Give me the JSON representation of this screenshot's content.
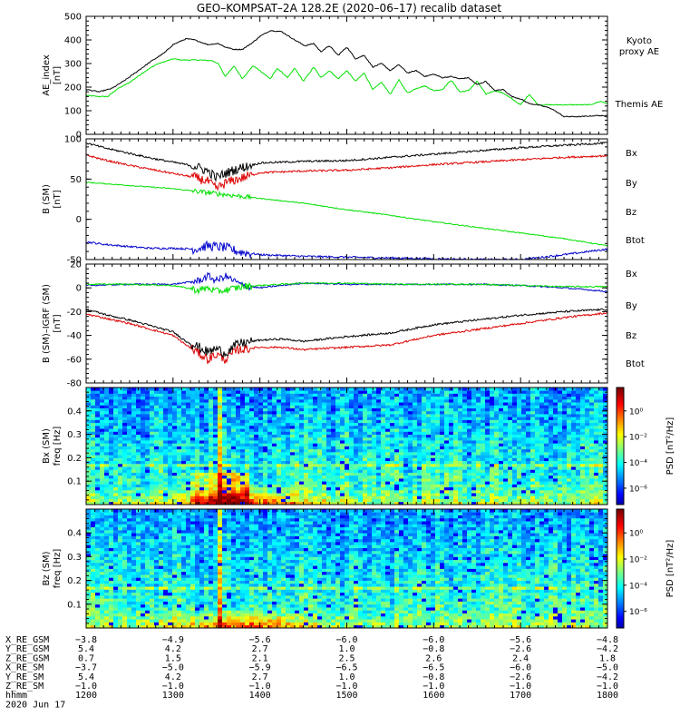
{
  "title": "GEO–KOMPSAT–2A 128.2E (2020–06–17) recalib dataset",
  "chart_data": [
    {
      "type": "line",
      "ylabel": "AE_index",
      "yunit": "[nT]",
      "ylim": [
        0,
        500
      ],
      "yticks": [
        "0",
        "100",
        "200",
        "300",
        "400",
        "500"
      ],
      "xlim": [
        1200,
        1800
      ],
      "series": [
        {
          "name": "Kyoto\nproxy AE",
          "color": "#00e000",
          "x": [
            1200,
            1215,
            1225,
            1235,
            1250,
            1265,
            1280,
            1300,
            1310,
            1330,
            1345,
            1352,
            1360,
            1370,
            1380,
            1392,
            1400,
            1412,
            1420,
            1432,
            1440,
            1450,
            1462,
            1470,
            1480,
            1490,
            1500,
            1510,
            1520,
            1530,
            1540,
            1550,
            1560,
            1570,
            1580,
            1590,
            1600,
            1610,
            1620,
            1630,
            1640,
            1650,
            1660,
            1670,
            1680,
            1690,
            1700,
            1710,
            1720,
            1740,
            1760,
            1780,
            1792,
            1800
          ],
          "y": [
            165,
            160,
            160,
            190,
            220,
            260,
            295,
            320,
            315,
            315,
            312,
            300,
            245,
            290,
            235,
            290,
            270,
            235,
            280,
            240,
            280,
            225,
            285,
            240,
            270,
            235,
            270,
            225,
            260,
            190,
            220,
            170,
            230,
            175,
            195,
            205,
            185,
            190,
            230,
            180,
            185,
            225,
            170,
            185,
            175,
            150,
            125,
            170,
            125,
            125,
            125,
            125,
            140,
            130
          ]
        },
        {
          "name": "Themis AE",
          "color": "#000000",
          "x": [
            1200,
            1215,
            1230,
            1245,
            1260,
            1275,
            1290,
            1300,
            1315,
            1325,
            1340,
            1352,
            1360,
            1370,
            1380,
            1392,
            1400,
            1412,
            1425,
            1440,
            1452,
            1462,
            1470,
            1480,
            1490,
            1500,
            1510,
            1520,
            1530,
            1540,
            1550,
            1560,
            1570,
            1580,
            1590,
            1600,
            1610,
            1620,
            1630,
            1640,
            1650,
            1660,
            1670,
            1680,
            1690,
            1700,
            1710,
            1720,
            1735,
            1750,
            1770,
            1790,
            1800
          ],
          "y": [
            190,
            180,
            195,
            230,
            270,
            310,
            345,
            380,
            405,
            400,
            380,
            385,
            370,
            360,
            360,
            390,
            415,
            440,
            435,
            400,
            375,
            385,
            350,
            375,
            335,
            370,
            320,
            335,
            285,
            300,
            270,
            295,
            260,
            270,
            245,
            255,
            240,
            245,
            235,
            240,
            210,
            225,
            185,
            190,
            160,
            150,
            130,
            125,
            110,
            75,
            75,
            80,
            75
          ]
        }
      ],
      "legend": "right"
    },
    {
      "type": "line",
      "ylabel": "B (SM)",
      "yunit": "[nT]",
      "ylim": [
        -50,
        100
      ],
      "yticks": [
        "-50",
        "0",
        "50",
        "100"
      ],
      "xlim": [
        1200,
        1800
      ],
      "series": [
        {
          "name": "Bx",
          "color": "#0000cc",
          "x": [
            1200,
            1220,
            1250,
            1275,
            1300,
            1325,
            1340,
            1350,
            1360,
            1375,
            1400,
            1450,
            1500,
            1550,
            1600,
            1650,
            1700,
            1750,
            1800
          ],
          "y": [
            -28,
            -31,
            -34,
            -36,
            -36,
            -37,
            -33,
            -34,
            -35,
            -40,
            -44,
            -46,
            -47,
            -48,
            -49,
            -50,
            -50,
            -44,
            -37
          ]
        },
        {
          "name": "By",
          "color": "#00e000",
          "x": [
            1200,
            1250,
            1300,
            1350,
            1400,
            1450,
            1500,
            1550,
            1600,
            1650,
            1700,
            1750,
            1800
          ],
          "y": [
            46,
            42,
            38,
            32,
            26,
            20,
            12,
            5,
            -3,
            -10,
            -17,
            -24,
            -33
          ]
        },
        {
          "name": "Bz",
          "color": "#dd0000",
          "x": [
            1200,
            1220,
            1250,
            1275,
            1300,
            1325,
            1340,
            1350,
            1360,
            1375,
            1400,
            1450,
            1500,
            1550,
            1600,
            1650,
            1700,
            1750,
            1800
          ],
          "y": [
            80,
            74,
            67,
            62,
            57,
            52,
            47,
            38,
            45,
            50,
            58,
            60,
            61,
            64,
            68,
            71,
            74,
            77,
            79
          ]
        },
        {
          "name": "Btot",
          "color": "#000000",
          "x": [
            1200,
            1220,
            1250,
            1275,
            1300,
            1325,
            1340,
            1350,
            1360,
            1375,
            1400,
            1450,
            1500,
            1550,
            1600,
            1650,
            1700,
            1750,
            1800
          ],
          "y": [
            95,
            89,
            82,
            76,
            71,
            66,
            60,
            52,
            57,
            63,
            70,
            72,
            73,
            77,
            81,
            85,
            89,
            92,
            95
          ]
        }
      ],
      "legend": "right"
    },
    {
      "type": "line",
      "ylabel": "B (SM)–IGRF (SM)",
      "yunit": "[nT]",
      "ylim": [
        -80,
        20
      ],
      "yticks": [
        "-80",
        "-60",
        "-40",
        "-20",
        "0",
        "20"
      ],
      "xlim": [
        1200,
        1800
      ],
      "series": [
        {
          "name": "Bx",
          "color": "#0000cc",
          "x": [
            1200,
            1250,
            1300,
            1330,
            1340,
            1350,
            1360,
            1380,
            1400,
            1450,
            1500,
            1550,
            1600,
            1650,
            1700,
            1750,
            1800
          ],
          "y": [
            2,
            3,
            3,
            6,
            10,
            6,
            10,
            2,
            0,
            4,
            3,
            3,
            3,
            3,
            2,
            0,
            -3
          ]
        },
        {
          "name": "By",
          "color": "#00e000",
          "x": [
            1200,
            1250,
            1300,
            1330,
            1340,
            1350,
            1360,
            1380,
            1400,
            1450,
            1500,
            1550,
            1600,
            1650,
            1700,
            1750,
            1800
          ],
          "y": [
            3,
            3,
            2,
            -2,
            0,
            -3,
            -2,
            1,
            2,
            4,
            4,
            3,
            3,
            3,
            2,
            1,
            1
          ]
        },
        {
          "name": "Bz",
          "color": "#dd0000",
          "x": [
            1200,
            1225,
            1250,
            1275,
            1300,
            1315,
            1330,
            1340,
            1350,
            1360,
            1375,
            1400,
            1425,
            1450,
            1475,
            1500,
            1550,
            1600,
            1650,
            1700,
            1750,
            1800
          ],
          "y": [
            -22,
            -26,
            -30,
            -35,
            -40,
            -48,
            -55,
            -60,
            -56,
            -60,
            -52,
            -50,
            -50,
            -52,
            -51,
            -50,
            -48,
            -40,
            -35,
            -30,
            -25,
            -21
          ]
        },
        {
          "name": "Btot",
          "color": "#000000",
          "x": [
            1200,
            1225,
            1250,
            1275,
            1300,
            1315,
            1330,
            1340,
            1350,
            1360,
            1375,
            1400,
            1425,
            1450,
            1475,
            1500,
            1550,
            1600,
            1650,
            1700,
            1750,
            1800
          ],
          "y": [
            -18,
            -23,
            -27,
            -32,
            -37,
            -45,
            -50,
            -54,
            -51,
            -55,
            -47,
            -44,
            -43,
            -45,
            -43,
            -41,
            -38,
            -31,
            -27,
            -23,
            -20,
            -18
          ]
        }
      ],
      "legend": "right"
    },
    {
      "type": "heatmap",
      "ylabel": "Bx (SM)",
      "yunit": "freq  [Hz]",
      "ylim": [
        0,
        0.5
      ],
      "yticks": [
        "0.1",
        "0.2",
        "0.3",
        "0.4"
      ],
      "xlim": [
        1200,
        1800
      ],
      "colorbar": {
        "label": "PSD  [nT²/Hz]",
        "ticks": [
          "10⁰",
          "10⁻²",
          "10⁻⁴",
          "10⁻⁶"
        ]
      }
    },
    {
      "type": "heatmap",
      "ylabel": "Bz (SM)",
      "yunit": "freq  [Hz]",
      "ylim": [
        0,
        0.5
      ],
      "yticks": [
        "0.1",
        "0.2",
        "0.3",
        "0.4"
      ],
      "xlim": [
        1200,
        1800
      ],
      "colorbar": {
        "label": "PSD  [nT²/Hz]",
        "ticks": [
          "10⁰",
          "10⁻²",
          "10⁻⁴",
          "10⁻⁶"
        ]
      }
    }
  ],
  "ephemeris": {
    "labels": [
      "X_RE_GSM",
      "Y_RE_GSM",
      "Z_RE_GSM",
      "X_RE_SM",
      "Y_RE_SM",
      "Z_RE_SM",
      "hhmm",
      "2020 Jun 17"
    ],
    "columns": [
      [
        "−3.8",
        "5.4",
        "0.7",
        "−3.7",
        "5.4",
        "−1.0",
        "1200"
      ],
      [
        "−4.9",
        "4.2",
        "1.5",
        "−5.0",
        "4.2",
        "−1.0",
        "1300"
      ],
      [
        "−5.6",
        "2.7",
        "2.1",
        "−5.9",
        "2.7",
        "−1.0",
        "1400"
      ],
      [
        "−6.0",
        "1.0",
        "2.5",
        "−6.5",
        "1.0",
        "−1.0",
        "1500"
      ],
      [
        "−6.0",
        "−0.8",
        "2.6",
        "−6.5",
        "−0.8",
        "−1.0",
        "1600"
      ],
      [
        "−5.6",
        "−2.6",
        "2.4",
        "−6.0",
        "−2.6",
        "−1.0",
        "1700"
      ],
      [
        "−4.8",
        "−4.2",
        "1.8",
        "−5.0",
        "−4.2",
        "−1.0",
        "1800"
      ]
    ]
  }
}
